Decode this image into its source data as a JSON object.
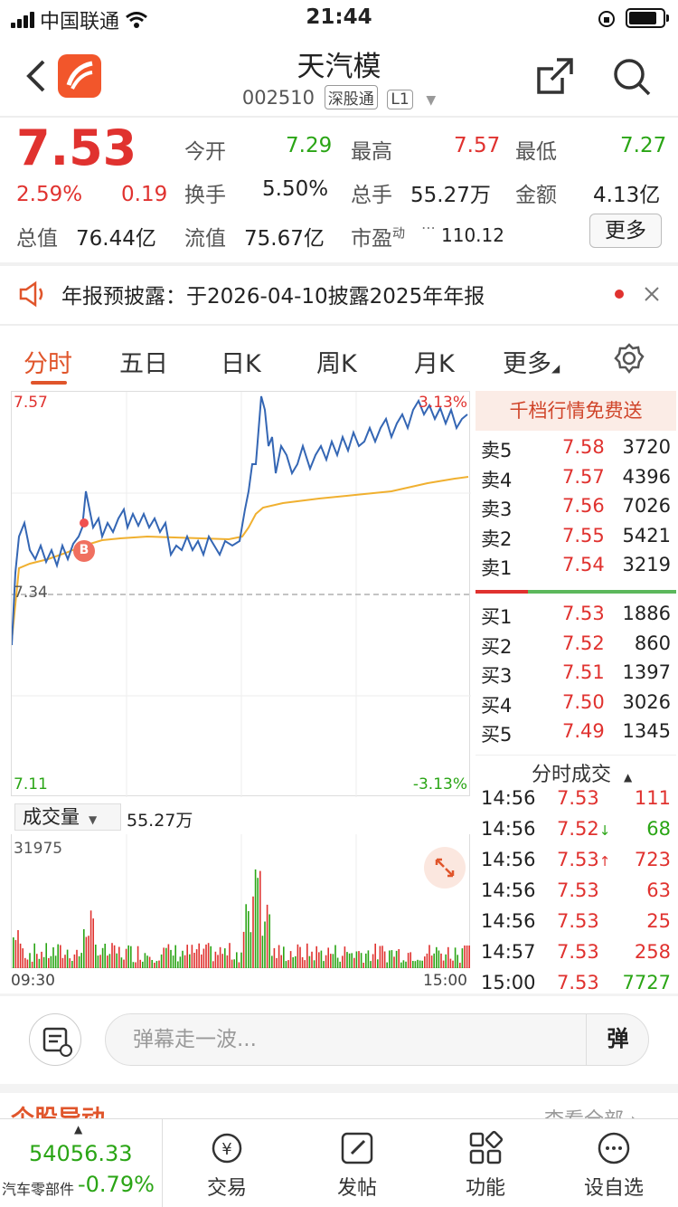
{
  "status_bar": {
    "carrier": "中国联通",
    "time": "21:44"
  },
  "header": {
    "title": "天汽模",
    "code": "002510",
    "market_tag": "深股通",
    "level_tag": "L1"
  },
  "quote": {
    "price": "7.53",
    "change_pct": "2.59%",
    "change": "0.19",
    "open_label": "今开",
    "open": "7.29",
    "high_label": "最高",
    "high": "7.57",
    "low_label": "最低",
    "low": "7.27",
    "turnover_label": "换手",
    "turnover": "5.50%",
    "volume_label": "总手",
    "volume": "55.27万",
    "amount_label": "金额",
    "amount": "4.13亿",
    "mktcap_label": "总值",
    "mktcap": "76.44亿",
    "float_label": "流值",
    "float": "75.67亿",
    "pe_label": "市盈",
    "pe_sup": "动",
    "pe": "110.12",
    "more": "更多"
  },
  "notice": {
    "text": "年报预披露：于2026-04-10披露2025年年报"
  },
  "tabs": [
    "分时",
    "五日",
    "日K",
    "周K",
    "月K",
    "更多"
  ],
  "chart": {
    "y_top": "7.57",
    "y_mid": "7.34",
    "y_bottom": "7.11",
    "pct_top": "3.13%",
    "pct_bottom": "-3.13%",
    "marker": "B",
    "volume_selector": "成交量",
    "volume_total": "55.27万",
    "volume_max": "31975",
    "time_start": "09:30",
    "time_end": "15:00"
  },
  "order_book": {
    "header": "千档行情免费送",
    "asks": [
      {
        "label": "卖5",
        "price": "7.58",
        "vol": "3720"
      },
      {
        "label": "卖4",
        "price": "7.57",
        "vol": "4396"
      },
      {
        "label": "卖3",
        "price": "7.56",
        "vol": "7026"
      },
      {
        "label": "卖2",
        "price": "7.55",
        "vol": "5421"
      },
      {
        "label": "卖1",
        "price": "7.54",
        "vol": "3219"
      }
    ],
    "bids": [
      {
        "label": "买1",
        "price": "7.53",
        "vol": "1886"
      },
      {
        "label": "买2",
        "price": "7.52",
        "vol": "860"
      },
      {
        "label": "买3",
        "price": "7.51",
        "vol": "1397"
      },
      {
        "label": "买4",
        "price": "7.50",
        "vol": "3026"
      },
      {
        "label": "买5",
        "price": "7.49",
        "vol": "1345"
      }
    ]
  },
  "ticks": {
    "header": "分时成交",
    "rows": [
      {
        "time": "14:56",
        "price": "7.53",
        "arrow": "",
        "vol": "111",
        "vol_color": "red"
      },
      {
        "time": "14:56",
        "price": "7.52",
        "arrow": "↓",
        "vol": "68",
        "vol_color": "green"
      },
      {
        "time": "14:56",
        "price": "7.53",
        "arrow": "↑",
        "vol": "723",
        "vol_color": "red"
      },
      {
        "time": "14:56",
        "price": "7.53",
        "arrow": "",
        "vol": "63",
        "vol_color": "red"
      },
      {
        "time": "14:56",
        "price": "7.53",
        "arrow": "",
        "vol": "25",
        "vol_color": "red"
      },
      {
        "time": "14:57",
        "price": "7.53",
        "arrow": "",
        "vol": "258",
        "vol_color": "red"
      },
      {
        "time": "15:00",
        "price": "7.53",
        "arrow": "",
        "vol": "7727",
        "vol_color": "green"
      }
    ]
  },
  "danmu": {
    "placeholder": "弹幕走一波...",
    "send": "弹"
  },
  "section_peek": {
    "title": "个股异动",
    "link": "查看全部 ›"
  },
  "bottom_bar": {
    "index_value": "54056.33",
    "index_name": "汽车零部件",
    "index_change": "-0.79%",
    "tabs": [
      "交易",
      "发帖",
      "功能",
      "设自选"
    ]
  },
  "colors": {
    "up": "#e0322f",
    "down": "#2aa515",
    "accent": "#e0552b",
    "price_line": "#3466b4",
    "avg_line": "#f0b030"
  }
}
